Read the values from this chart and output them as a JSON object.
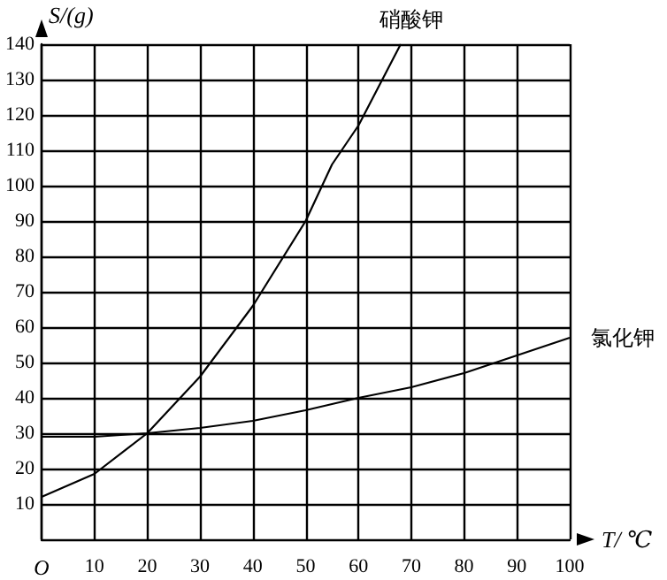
{
  "chart_data": {
    "type": "line",
    "xlabel": "T/ ℃",
    "ylabel": "S/(g)",
    "xlim": [
      0,
      100
    ],
    "xticks": [
      {
        "value": 0,
        "label": "O"
      },
      10,
      20,
      30,
      40,
      50,
      60,
      70,
      80,
      90,
      100
    ],
    "ylim": [
      0,
      140
    ],
    "yticks": [
      10,
      20,
      30,
      40,
      50,
      60,
      70,
      80,
      90,
      100,
      110,
      120,
      130,
      140
    ],
    "grid": true,
    "legend": false,
    "line_style": "solid",
    "series": [
      {
        "name": "硝酸钾",
        "color": "#000000",
        "x": [
          0,
          10,
          20,
          30,
          40,
          50,
          55,
          60,
          68
        ],
        "values": [
          12,
          18.5,
          30,
          46,
          66,
          90,
          106,
          117,
          140
        ]
      },
      {
        "name": "氯化钾",
        "color": "#000000",
        "x": [
          0,
          10,
          20,
          30,
          40,
          50,
          60,
          70,
          80,
          90,
          100
        ],
        "values": [
          29,
          29,
          30,
          31.5,
          33.5,
          36.5,
          40,
          43,
          47,
          52,
          57
        ]
      }
    ]
  }
}
